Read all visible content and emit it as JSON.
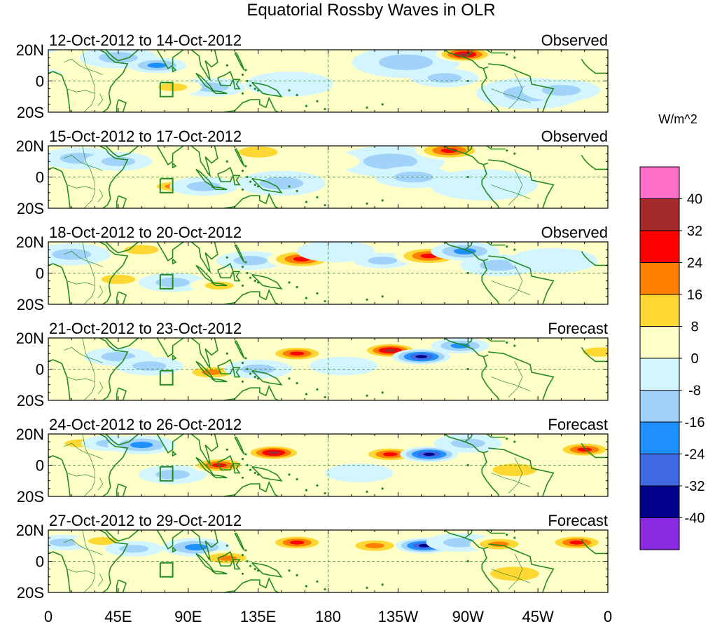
{
  "title": "Equatorial Rossby Waves in OLR",
  "units_label": "W/m^2",
  "lat_labels": [
    "20N",
    "0",
    "20S"
  ],
  "lon_labels": [
    "0",
    "45E",
    "90E",
    "135E",
    "180",
    "135W",
    "90W",
    "45W",
    "0"
  ],
  "panels": [
    {
      "date_range": "12-Oct-2012 to 14-Oct-2012",
      "status": "Observed"
    },
    {
      "date_range": "15-Oct-2012 to 17-Oct-2012",
      "status": "Observed"
    },
    {
      "date_range": "18-Oct-2012 to 20-Oct-2012",
      "status": "Observed"
    },
    {
      "date_range": "21-Oct-2012 to 23-Oct-2012",
      "status": "Forecast"
    },
    {
      "date_range": "24-Oct-2012 to 26-Oct-2012",
      "status": "Forecast"
    },
    {
      "date_range": "27-Oct-2012 to 29-Oct-2012",
      "status": "Forecast"
    }
  ],
  "colorbar": {
    "tick_labels": [
      "40",
      "32",
      "24",
      "16",
      "8",
      "0",
      "-8",
      "-16",
      "-24",
      "-32",
      "-40"
    ],
    "colors_top_to_bottom": [
      "#ff6ec7",
      "#a52a2a",
      "#ff0000",
      "#ff7f00",
      "#ffd733",
      "#ffffc8",
      "#d2f5ff",
      "#a0d2fa",
      "#1e90ff",
      "#4169e1",
      "#00008b",
      "#8a2be2"
    ]
  },
  "coast_color": "#228b22",
  "contour_fields": [
    [
      [
        12,
        14,
        -10,
        9
      ],
      [
        27,
        13,
        8,
        9
      ],
      [
        45,
        15,
        -10,
        7
      ],
      [
        70,
        10,
        -20,
        5
      ],
      [
        105,
        -4,
        -14,
        6
      ],
      [
        115,
        15,
        6,
        6
      ],
      [
        155,
        -2,
        -8,
        8
      ],
      [
        190,
        14,
        8,
        8
      ],
      [
        230,
        12,
        -10,
        10
      ],
      [
        268,
        17,
        34,
        5
      ],
      [
        255,
        2,
        -9,
        6
      ],
      [
        310,
        -8,
        -9,
        10
      ],
      [
        330,
        -6,
        -12,
        7
      ],
      [
        80,
        -4,
        14,
        5
      ]
    ],
    [
      [
        20,
        12,
        -10,
        7
      ],
      [
        45,
        10,
        -12,
        6
      ],
      [
        80,
        -6,
        18,
        4
      ],
      [
        100,
        -6,
        -14,
        6
      ],
      [
        135,
        16,
        16,
        7
      ],
      [
        150,
        -4,
        -12,
        8
      ],
      [
        220,
        10,
        -10,
        10
      ],
      [
        258,
        17,
        26,
        6
      ],
      [
        235,
        0,
        -10,
        7
      ],
      [
        280,
        -5,
        -8,
        10
      ],
      [
        175,
        10,
        8,
        7
      ],
      [
        325,
        15,
        6,
        6
      ]
    ],
    [
      [
        15,
        12,
        -9,
        7
      ],
      [
        45,
        -4,
        10,
        6
      ],
      [
        60,
        15,
        10,
        6
      ],
      [
        80,
        -6,
        -16,
        6
      ],
      [
        110,
        -8,
        14,
        5
      ],
      [
        130,
        8,
        -12,
        6
      ],
      [
        163,
        9,
        28,
        6
      ],
      [
        185,
        14,
        -8,
        7
      ],
      [
        215,
        8,
        -16,
        5
      ],
      [
        245,
        11,
        28,
        6
      ],
      [
        268,
        14,
        -24,
        6
      ],
      [
        290,
        5,
        -10,
        7
      ],
      [
        325,
        8,
        -8,
        8
      ]
    ],
    [
      [
        15,
        10,
        8,
        6
      ],
      [
        45,
        8,
        -14,
        6
      ],
      [
        65,
        2,
        -10,
        6
      ],
      [
        105,
        -2,
        24,
        5
      ],
      [
        135,
        0,
        -14,
        6
      ],
      [
        160,
        10,
        30,
        5
      ],
      [
        220,
        12,
        38,
        5
      ],
      [
        240,
        8,
        -40,
        5
      ],
      [
        265,
        15,
        -22,
        5
      ],
      [
        190,
        2,
        -8,
        6
      ],
      [
        330,
        -5,
        8,
        8
      ],
      [
        355,
        11,
        10,
        6
      ]
    ],
    [
      [
        20,
        14,
        14,
        5
      ],
      [
        40,
        14,
        -10,
        5
      ],
      [
        60,
        13,
        -20,
        6
      ],
      [
        80,
        -6,
        -12,
        6
      ],
      [
        110,
        0,
        26,
        5
      ],
      [
        145,
        8,
        34,
        5
      ],
      [
        220,
        7,
        32,
        5
      ],
      [
        245,
        7,
        -40,
        5
      ],
      [
        270,
        14,
        -14,
        6
      ],
      [
        300,
        -3,
        10,
        8
      ],
      [
        345,
        10,
        28,
        5
      ],
      [
        200,
        -5,
        -8,
        6
      ]
    ],
    [
      [
        10,
        12,
        -16,
        5
      ],
      [
        35,
        13,
        16,
        5
      ],
      [
        55,
        8,
        -14,
        5
      ],
      [
        95,
        9,
        -18,
        6
      ],
      [
        115,
        2,
        22,
        5
      ],
      [
        160,
        12,
        30,
        5
      ],
      [
        210,
        10,
        24,
        5
      ],
      [
        242,
        10,
        -38,
        5
      ],
      [
        265,
        12,
        -14,
        6
      ],
      [
        290,
        11,
        24,
        5
      ],
      [
        300,
        -8,
        12,
        9
      ],
      [
        340,
        12,
        30,
        5
      ]
    ]
  ]
}
